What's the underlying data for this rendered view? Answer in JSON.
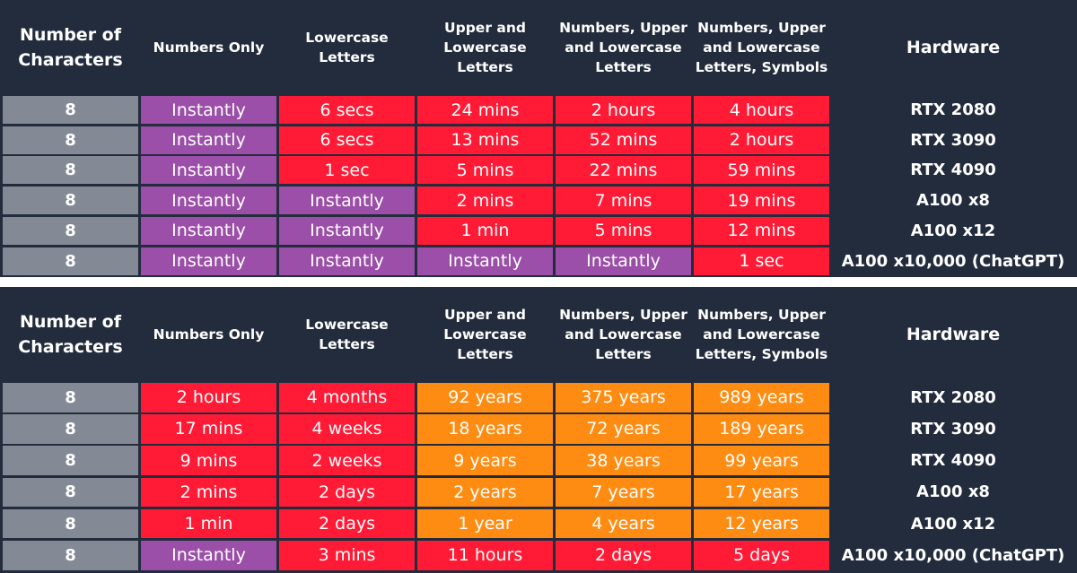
{
  "tables": [
    {
      "headers": [
        "Number of Characters",
        "Numbers Only",
        "Lowercase Letters",
        "Upper and Lowercase Letters",
        "Numbers, Upper and Lowercase Letters",
        "Numbers, Upper and Lowercase Letters, Symbols",
        "Hardware"
      ],
      "rows": [
        {
          "chars": "8",
          "values": [
            "Instantly",
            "6 secs",
            "24 mins",
            "2 hours",
            "4 hours"
          ],
          "colors": [
            "purple",
            "red",
            "red",
            "red",
            "red"
          ],
          "hardware": "RTX 2080"
        },
        {
          "chars": "8",
          "values": [
            "Instantly",
            "6 secs",
            "13 mins",
            "52 mins",
            "2 hours"
          ],
          "colors": [
            "purple",
            "red",
            "red",
            "red",
            "red"
          ],
          "hardware": "RTX 3090"
        },
        {
          "chars": "8",
          "values": [
            "Instantly",
            "1 sec",
            "5 mins",
            "22 mins",
            "59 mins"
          ],
          "colors": [
            "purple",
            "red",
            "red",
            "red",
            "red"
          ],
          "hardware": "RTX 4090"
        },
        {
          "chars": "8",
          "values": [
            "Instantly",
            "Instantly",
            "2 mins",
            "7 mins",
            "19 mins"
          ],
          "colors": [
            "purple",
            "purple",
            "red",
            "red",
            "red"
          ],
          "hardware": "A100 x8"
        },
        {
          "chars": "8",
          "values": [
            "Instantly",
            "Instantly",
            "1 min",
            "5 mins",
            "12 mins"
          ],
          "colors": [
            "purple",
            "purple",
            "red",
            "red",
            "red"
          ],
          "hardware": "A100 x12"
        },
        {
          "chars": "8",
          "values": [
            "Instantly",
            "Instantly",
            "Instantly",
            "Instantly",
            "1 sec"
          ],
          "colors": [
            "purple",
            "purple",
            "purple",
            "purple",
            "red"
          ],
          "hardware": "A100 x10,000 (ChatGPT)"
        }
      ]
    },
    {
      "headers": [
        "Number of Characters",
        "Numbers Only",
        "Lowercase Letters",
        "Upper and Lowercase Letters",
        "Numbers, Upper and Lowercase Letters",
        "Numbers, Upper and Lowercase Letters, Symbols",
        "Hardware"
      ],
      "rows": [
        {
          "chars": "8",
          "values": [
            "2 hours",
            "4 months",
            "92 years",
            "375 years",
            "989 years"
          ],
          "colors": [
            "red",
            "red",
            "orange",
            "orange",
            "orange"
          ],
          "hardware": "RTX 2080"
        },
        {
          "chars": "8",
          "values": [
            "17 mins",
            "4 weeks",
            "18 years",
            "72 years",
            "189 years"
          ],
          "colors": [
            "red",
            "red",
            "orange",
            "orange",
            "orange"
          ],
          "hardware": "RTX 3090"
        },
        {
          "chars": "8",
          "values": [
            "9 mins",
            "2 weeks",
            "9 years",
            "38 years",
            "99 years"
          ],
          "colors": [
            "red",
            "red",
            "orange",
            "orange",
            "orange"
          ],
          "hardware": "RTX 4090"
        },
        {
          "chars": "8",
          "values": [
            "2 mins",
            "2 days",
            "2 years",
            "7 years",
            "17 years"
          ],
          "colors": [
            "red",
            "red",
            "orange",
            "orange",
            "orange"
          ],
          "hardware": "A100 x8"
        },
        {
          "chars": "8",
          "values": [
            "1 min",
            "2 days",
            "1 year",
            "4 years",
            "12 years"
          ],
          "colors": [
            "red",
            "red",
            "orange",
            "orange",
            "orange"
          ],
          "hardware": "A100 x12"
        },
        {
          "chars": "8",
          "values": [
            "Instantly",
            "3 mins",
            "11 hours",
            "2 days",
            "5 days"
          ],
          "colors": [
            "purple",
            "red",
            "red",
            "red",
            "red"
          ],
          "hardware": "A100 x10,000 (ChatGPT)"
        }
      ]
    }
  ],
  "colors": {
    "background": "#232c3d",
    "gray": "#848a95",
    "purple": "#9b4fa8",
    "red": "#ff1a35",
    "orange": "#ff8c12"
  }
}
